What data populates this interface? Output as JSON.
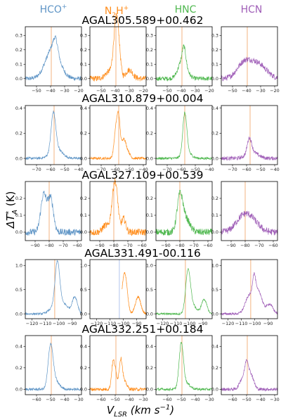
{
  "colors": {
    "HCO+": "#5f95c6",
    "N2H+": "#ff8c1a",
    "HNC": "#4fb84f",
    "HCN": "#a05fb8",
    "marker": "#f0a060",
    "marker_alt": "#9fb7e8"
  },
  "columns": [
    {
      "key": "HCO+",
      "label": "HCO",
      "sup": "+",
      "color": "#5f95c6"
    },
    {
      "key": "N2H+",
      "label": "N",
      "sub": "2",
      "label2": "H",
      "sup": "+",
      "color": "#ff8c1a"
    },
    {
      "key": "HNC",
      "label": "HNC",
      "color": "#4fb84f"
    },
    {
      "key": "HCN",
      "label": "HCN",
      "color": "#a05fb8"
    }
  ],
  "y_axis_label": "ΔT*A (K)",
  "x_axis_label": "VLSR (km s−1)",
  "chart_data": [
    {
      "type": "line",
      "source": "AGAL305.589+00.462",
      "xlim": [
        -58,
        -18
      ],
      "ylim": [
        -0.05,
        0.36
      ],
      "vlsr": -39.5,
      "xticks": [
        -50,
        -40,
        -30,
        -20
      ],
      "yticks": [
        0.0,
        0.1,
        0.2,
        0.3
      ],
      "series": [
        {
          "key": "HCO+",
          "components": [
            {
              "v": -38.5,
              "a": 0.21,
              "w": 5
            },
            {
              "v": -36.5,
              "a": 0.09,
              "w": 1.6
            }
          ],
          "noise": 0.015
        },
        {
          "key": "N2H+",
          "components": [
            {
              "v": -40,
              "a": 0.26,
              "w": 1.5
            },
            {
              "v": -38,
              "a": 0.27,
              "w": 1.5
            },
            {
              "v": -30,
              "a": 0.06,
              "w": 2.5
            },
            {
              "v": -44,
              "a": 0.05,
              "w": 3
            }
          ],
          "noise": 0.02
        },
        {
          "key": "HNC",
          "components": [
            {
              "v": -39,
              "a": 0.13,
              "w": 3
            },
            {
              "v": -38,
              "a": 0.1,
              "w": 1.2
            }
          ],
          "noise": 0.015
        },
        {
          "key": "HCN",
          "components": [
            {
              "v": -42,
              "a": 0.1,
              "w": 5
            },
            {
              "v": -32,
              "a": 0.1,
              "w": 6
            }
          ],
          "noise": 0.02
        }
      ]
    },
    {
      "type": "line",
      "source": "AGAL310.879+00.004",
      "xlim": [
        -78,
        -38
      ],
      "ylim": [
        -0.05,
        0.42
      ],
      "vlsr": -57.5,
      "xticks": [
        -70,
        -60,
        -50,
        -40
      ],
      "yticks": [
        0.0,
        0.2,
        0.4
      ],
      "series": [
        {
          "key": "HCO+",
          "components": [
            {
              "v": -58,
              "a": 0.3,
              "w": 1.6
            },
            {
              "v": -56,
              "a": 0.08,
              "w": 4
            }
          ],
          "noise": 0.01
        },
        {
          "key": "N2H+",
          "components": [
            {
              "v": -59.5,
              "a": 0.22,
              "w": 1.3
            },
            {
              "v": -57.5,
              "a": 0.28,
              "w": 1.1
            },
            {
              "v": -54,
              "a": 0.15,
              "w": 1.5
            },
            {
              "v": -51,
              "a": 0.05,
              "w": 1.5
            }
          ],
          "noise": 0.01
        },
        {
          "key": "HNC",
          "components": [
            {
              "v": -57.5,
              "a": 0.32,
              "w": 1.4
            },
            {
              "v": -56,
              "a": 0.05,
              "w": 3
            }
          ],
          "noise": 0.01
        },
        {
          "key": "HCN",
          "components": [
            {
              "v": -58,
              "a": 0.12,
              "w": 1.5
            },
            {
              "v": -56,
              "a": 0.05,
              "w": 4
            }
          ],
          "noise": 0.015
        }
      ]
    },
    {
      "type": "line",
      "source": "AGAL327.109+00.539",
      "xlim": [
        -97,
        -57
      ],
      "ylim": [
        -0.05,
        0.3
      ],
      "vlsr": -80,
      "xticks": [
        -90,
        -80,
        -70,
        -60
      ],
      "yticks": [
        0.0,
        0.1,
        0.2
      ],
      "series": [
        {
          "key": "HCO+",
          "components": [
            {
              "v": -84,
              "a": 0.22,
              "w": 2
            },
            {
              "v": -79,
              "a": 0.2,
              "w": 2
            }
          ],
          "noise": 0.02
        },
        {
          "key": "N2H+",
          "components": [
            {
              "v": -80,
              "a": 0.22,
              "w": 1.8
            },
            {
              "v": -78,
              "a": 0.14,
              "w": 1.5
            },
            {
              "v": -73,
              "a": 0.08,
              "w": 1.5
            },
            {
              "v": -86,
              "a": 0.04,
              "w": 2
            }
          ],
          "noise": 0.02
        },
        {
          "key": "HNC",
          "components": [
            {
              "v": -80,
              "a": 0.2,
              "w": 2
            },
            {
              "v": -76,
              "a": 0.08,
              "w": 3
            }
          ],
          "noise": 0.02
        },
        {
          "key": "HCN",
          "components": [
            {
              "v": -82,
              "a": 0.08,
              "w": 5
            },
            {
              "v": -75,
              "a": 0.06,
              "w": 5
            }
          ],
          "noise": 0.02
        }
      ]
    },
    {
      "type": "line",
      "source": "AGAL331.491-00.116",
      "xlim": [
        -125,
        -83
      ],
      "ylim": [
        -0.1,
        1.12
      ],
      "vlsr": -103,
      "xticks": [
        -120,
        -110,
        -100,
        -90
      ],
      "yticks": [
        0.0,
        0.5,
        1.0
      ],
      "series": [
        {
          "key": "HCO+",
          "components": [
            {
              "v": -101,
              "a": 1.0,
              "w": 1.8
            },
            {
              "v": -96,
              "a": 0.2,
              "w": 3
            },
            {
              "v": -88,
              "a": 0.35,
              "w": 2
            },
            {
              "v": -105,
              "a": 0.1,
              "w": 3
            }
          ],
          "noise": 0.02
        },
        {
          "key": "N2H+",
          "components": [
            {
              "v": -100,
              "a": 0.55,
              "w": 1.5
            },
            {
              "v": -98,
              "a": 0.5,
              "w": 1.5
            },
            {
              "v": -89,
              "a": 0.35,
              "w": 2
            }
          ],
          "noise": 0.02,
          "x_start": -101
        },
        {
          "key": "HNC",
          "components": [
            {
              "v": -101,
              "a": 0.88,
              "w": 1.8
            },
            {
              "v": -97,
              "a": 0.15,
              "w": 2.5
            },
            {
              "v": -89,
              "a": 0.3,
              "w": 2
            }
          ],
          "noise": 0.02
        },
        {
          "key": "HCN",
          "components": [
            {
              "v": -104,
              "a": 0.38,
              "w": 3
            },
            {
              "v": -100.5,
              "a": 0.48,
              "w": 1.2
            },
            {
              "v": -97,
              "a": 0.45,
              "w": 2.5
            },
            {
              "v": -89,
              "a": 0.2,
              "w": 2.5
            }
          ],
          "noise": 0.025
        }
      ]
    },
    {
      "type": "line",
      "source": "AGAL332.251+00.184",
      "xlim": [
        -68,
        -28
      ],
      "ylim": [
        -0.05,
        0.5
      ],
      "vlsr": -49.5,
      "xticks": [
        -60,
        -50,
        -40,
        -30
      ],
      "yticks": [
        0.0,
        0.2,
        0.4
      ],
      "series": [
        {
          "key": "HCO+",
          "components": [
            {
              "v": -50,
              "a": 0.38,
              "w": 1.7
            },
            {
              "v": -47,
              "a": 0.08,
              "w": 3
            }
          ],
          "noise": 0.012
        },
        {
          "key": "N2H+",
          "components": [
            {
              "v": -51.5,
              "a": 0.25,
              "w": 1.1
            },
            {
              "v": -49.5,
              "a": 0.12,
              "w": 1
            },
            {
              "v": -46,
              "a": 0.28,
              "w": 1.2
            },
            {
              "v": -43,
              "a": 0.06,
              "w": 1.5
            }
          ],
          "noise": 0.015
        },
        {
          "key": "HNC",
          "components": [
            {
              "v": -50,
              "a": 0.4,
              "w": 1.5
            },
            {
              "v": -47,
              "a": 0.06,
              "w": 3
            }
          ],
          "noise": 0.012
        },
        {
          "key": "HCN",
          "components": [
            {
              "v": -53,
              "a": 0.1,
              "w": 2
            },
            {
              "v": -50,
              "a": 0.2,
              "w": 1.3
            },
            {
              "v": -47,
              "a": 0.14,
              "w": 2
            }
          ],
          "noise": 0.015
        }
      ]
    }
  ]
}
